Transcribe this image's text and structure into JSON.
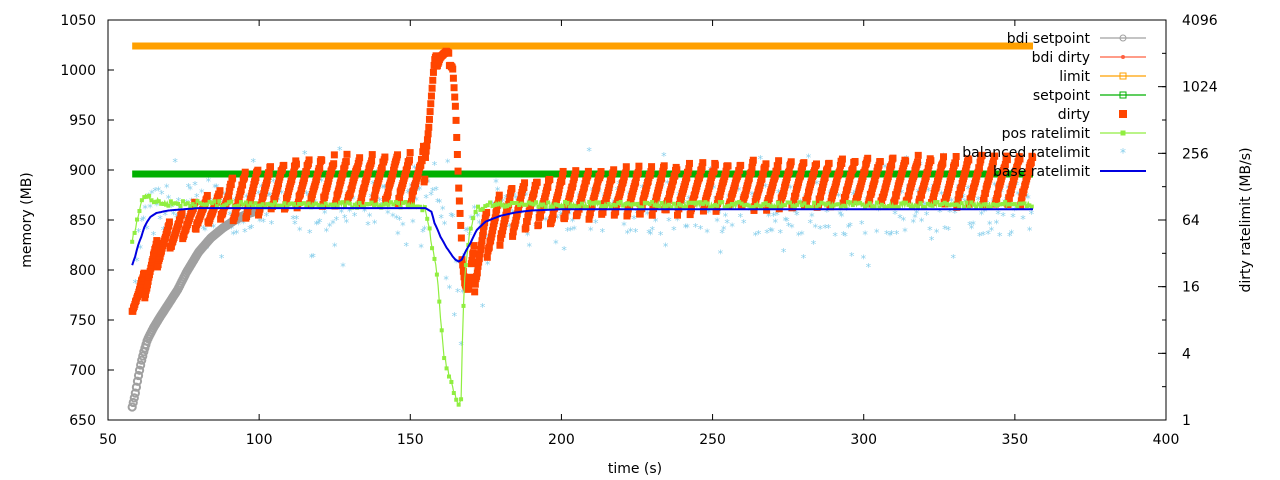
{
  "chart_data": {
    "type": "line",
    "xlabel": "time (s)",
    "ylabel": "memory (MB)",
    "y2label": "dirty ratelimit (MB/s)",
    "xlim": [
      50,
      400
    ],
    "ylim": [
      650,
      1050
    ],
    "y2lim": [
      1,
      4096
    ],
    "y2scale": "log2",
    "x_ticks": [
      50,
      100,
      150,
      200,
      250,
      300,
      350,
      400
    ],
    "y_ticks": [
      650,
      700,
      750,
      800,
      850,
      900,
      950,
      1000,
      1050
    ],
    "y2_ticks": [
      1,
      4,
      16,
      64,
      256,
      1024,
      4096
    ],
    "grid": false,
    "legend_position": "top-right",
    "colors": {
      "bdi_setpoint": "#a0a0a0",
      "bdi_dirty": "#ff6040",
      "limit": "#ffa000",
      "setpoint": "#00b000",
      "dirty": "#ff4500",
      "pos_ratelimit": "#90ee40",
      "balanced_ratelimit": "#87ceeb",
      "base_ratelimit": "#0000e0"
    },
    "series": [
      {
        "name": "bdi setpoint",
        "key": "bdi_setpoint",
        "axis": "y",
        "style": "points-circle",
        "x": [
          58,
          59,
          60,
          61,
          62,
          63,
          65,
          67,
          70,
          73,
          76,
          80,
          84,
          88,
          92,
          96,
          100
        ],
        "values": [
          663,
          676,
          693,
          708,
          720,
          730,
          742,
          752,
          766,
          780,
          798,
          818,
          832,
          842,
          850,
          856,
          860
        ]
      },
      {
        "name": "bdi dirty",
        "key": "bdi_dirty",
        "axis": "y",
        "style": "line-dot",
        "x": [],
        "values": []
      },
      {
        "name": "limit",
        "key": "limit",
        "axis": "y",
        "style": "thick-line",
        "x": [
          58,
          356
        ],
        "values": [
          1024,
          1024
        ]
      },
      {
        "name": "setpoint",
        "key": "setpoint",
        "axis": "y",
        "style": "thick-line",
        "x": [
          58,
          356
        ],
        "values": [
          896,
          896
        ]
      },
      {
        "name": "dirty",
        "key": "dirty",
        "axis": "y",
        "style": "sawtooth-band",
        "x": [
          58,
          60,
          62,
          64,
          66,
          68,
          70,
          73,
          76,
          80,
          85,
          90,
          95,
          100,
          110,
          120,
          130,
          140,
          150,
          154,
          156,
          158,
          160,
          162,
          164,
          165,
          166,
          167,
          168,
          169,
          170,
          172,
          175,
          180,
          185,
          190,
          200,
          210,
          220,
          230,
          240,
          260,
          280,
          300,
          320,
          340,
          356
        ],
        "values": [
          770,
          775,
          785,
          800,
          815,
          825,
          832,
          840,
          848,
          856,
          862,
          870,
          875,
          880,
          885,
          888,
          890,
          892,
          893,
          893,
          940,
          1005,
          1015,
          1015,
          1005,
          960,
          880,
          820,
          790,
          780,
          790,
          810,
          835,
          852,
          862,
          868,
          872,
          876,
          878,
          880,
          882,
          884,
          886,
          888,
          889,
          890,
          891
        ]
      },
      {
        "name": "pos ratelimit",
        "key": "pos_ratelimit",
        "axis": "y2",
        "style": "line-square",
        "x": [
          58,
          59,
          60,
          61,
          62,
          63,
          64,
          66,
          70,
          80,
          100,
          130,
          150,
          155,
          157,
          159,
          160,
          161,
          162,
          163,
          164,
          165,
          166,
          167,
          168,
          170,
          172,
          175,
          180,
          190,
          200,
          250,
          300,
          356
        ],
        "values": [
          40,
          55,
          70,
          90,
          105,
          110,
          100,
          95,
          90,
          90,
          88,
          88,
          88,
          82,
          40,
          18,
          8,
          4,
          3,
          2.5,
          2,
          1.6,
          1.3,
          1.5,
          18,
          55,
          80,
          88,
          90,
          88,
          88,
          88,
          88,
          88
        ]
      },
      {
        "name": "balanced ratelimit",
        "key": "balanced_ratelimit",
        "axis": "y2",
        "style": "scatter-star",
        "x": [],
        "values": []
      },
      {
        "name": "base ratelimit",
        "key": "base_ratelimit",
        "axis": "y2",
        "style": "line",
        "x": [
          58,
          59,
          60,
          61,
          62,
          63,
          64,
          66,
          70,
          75,
          80,
          90,
          100,
          120,
          140,
          150,
          155,
          157,
          158,
          160,
          162,
          164,
          165,
          166,
          167,
          168,
          170,
          172,
          175,
          180,
          185,
          190,
          200,
          250,
          300,
          356
        ],
        "values": [
          25,
          30,
          38,
          45,
          55,
          62,
          68,
          74,
          78,
          80,
          82,
          82,
          82,
          82,
          82,
          82,
          82,
          76,
          60,
          45,
          36,
          30,
          28,
          27,
          28,
          32,
          40,
          52,
          62,
          70,
          75,
          78,
          80,
          80,
          80,
          80
        ]
      }
    ],
    "scatter_seed": 7,
    "legend": [
      {
        "label": "bdi setpoint",
        "key": "bdi_setpoint"
      },
      {
        "label": "bdi dirty",
        "key": "bdi_dirty"
      },
      {
        "label": "limit",
        "key": "limit"
      },
      {
        "label": "setpoint",
        "key": "setpoint"
      },
      {
        "label": "dirty",
        "key": "dirty"
      },
      {
        "label": "pos ratelimit",
        "key": "pos_ratelimit"
      },
      {
        "label": "balanced ratelimit",
        "key": "balanced_ratelimit"
      },
      {
        "label": "base ratelimit",
        "key": "base_ratelimit"
      }
    ]
  }
}
